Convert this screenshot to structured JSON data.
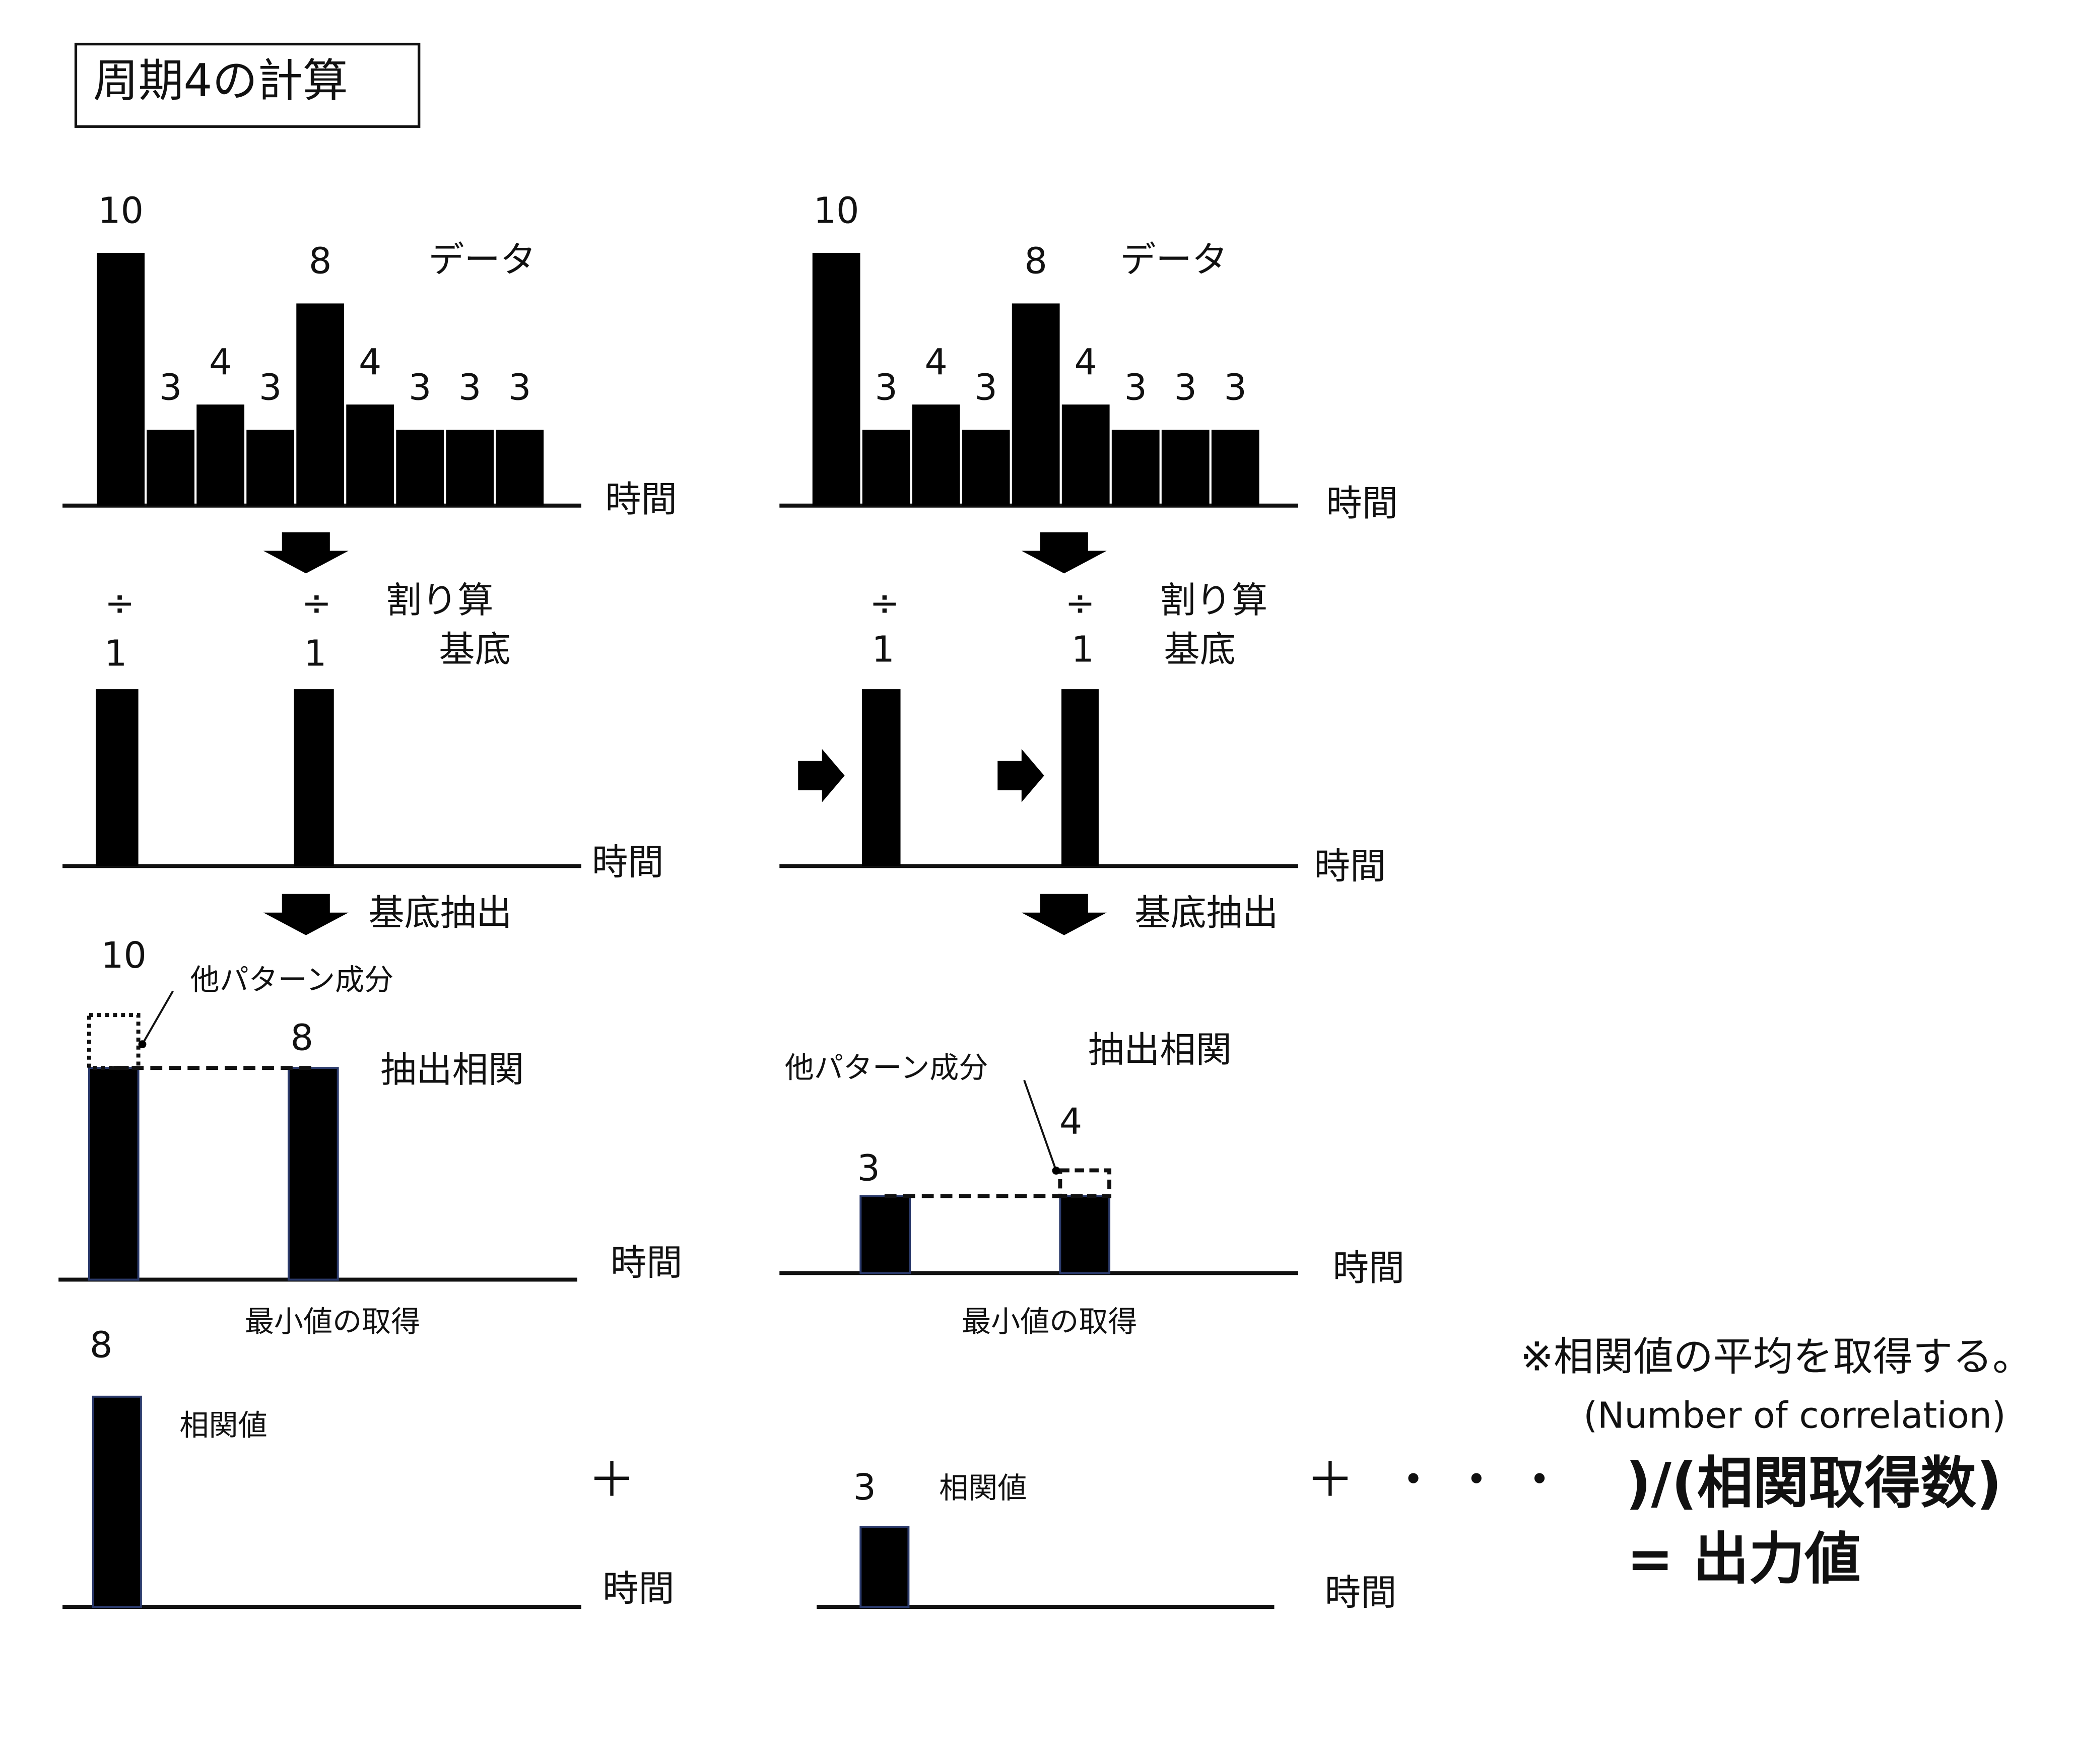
{
  "title": "周期4の計算",
  "panels": [
    {
      "data": {
        "values": [
          10,
          3,
          4,
          3,
          8,
          4,
          3,
          3,
          3
        ],
        "label": "データ",
        "axis": "時間"
      },
      "divide": {
        "symbols": [
          "÷",
          "÷"
        ],
        "values": [
          1,
          1
        ],
        "label": "割り算",
        "basis": "基底",
        "axis": "時間"
      },
      "extract": {
        "label": "基底抽出",
        "title": "抽出相関",
        "values": [
          10,
          8
        ],
        "note": "他パターン成分",
        "axis": "時間",
        "caption": "最小値の取得"
      },
      "result": {
        "value": 8,
        "label": "相関値",
        "axis": "時間"
      }
    },
    {
      "data": {
        "values": [
          10,
          3,
          4,
          3,
          8,
          4,
          3,
          3,
          3
        ],
        "label": "データ",
        "axis": "時間"
      },
      "divide": {
        "symbols": [
          "÷",
          "÷"
        ],
        "values": [
          1,
          1
        ],
        "label": "割り算",
        "basis": "基底",
        "axis": "時間"
      },
      "extract": {
        "label": "基底抽出",
        "title": "抽出相関",
        "values": [
          3,
          4
        ],
        "note": "他パターン成分",
        "axis": "時間",
        "caption": "最小値の取得"
      },
      "result": {
        "value": 3,
        "label": "相関値",
        "axis": "時間"
      }
    }
  ],
  "operators": [
    "＋",
    "＋",
    "・ ・ ・"
  ],
  "formula": {
    "note": "※相関値の平均を取得する。",
    "english": "(Number of correlation)",
    "denominator": ")/(相関取得数)",
    "result": "= 出力値"
  }
}
